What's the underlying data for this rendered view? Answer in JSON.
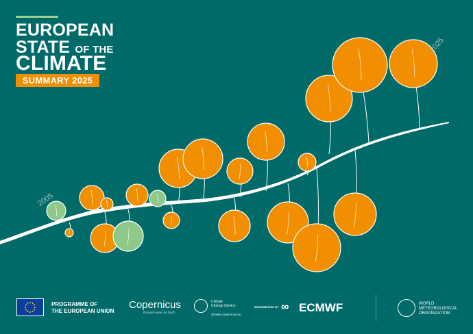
{
  "cover": {
    "title_line1": "EUROPEAN",
    "title_line2_big": "STATE",
    "title_line2_small": "OF THE",
    "title_line3": "CLIMATE",
    "summary_label": "SUMMARY 2025",
    "start_year": "2005",
    "end_year": "2025"
  },
  "colors": {
    "background": "#006a69",
    "warm": "#f18f00",
    "cool": "#8fc98a",
    "accent_bar": "#9ed08c"
  },
  "bubbles": [
    {
      "kind": "cool",
      "above": true
    },
    {
      "kind": "warm",
      "above": false
    },
    {
      "kind": "warm",
      "above": true
    },
    {
      "kind": "warm",
      "above": true
    },
    {
      "kind": "warm",
      "above": false
    },
    {
      "kind": "cool",
      "above": false
    },
    {
      "kind": "warm",
      "above": true
    },
    {
      "kind": "cool",
      "above": true
    },
    {
      "kind": "warm",
      "above": false
    },
    {
      "kind": "warm",
      "above": true
    },
    {
      "kind": "warm",
      "above": true
    },
    {
      "kind": "warm",
      "above": false
    },
    {
      "kind": "warm",
      "above": true
    },
    {
      "kind": "warm",
      "above": true
    },
    {
      "kind": "warm",
      "above": false
    },
    {
      "kind": "warm",
      "above": true
    },
    {
      "kind": "warm",
      "above": false
    },
    {
      "kind": "warm",
      "above": false
    },
    {
      "kind": "warm",
      "above": true
    },
    {
      "kind": "warm",
      "above": true
    },
    {
      "kind": "warm",
      "above": true
    }
  ],
  "footer": {
    "eu_line1": "PROGRAMME OF",
    "eu_line2": "THE EUROPEAN UNION",
    "copernicus": "Copernicus",
    "copernicus_tagline": "Europe's eyes on Earth",
    "c3s_line1": "Climate",
    "c3s_line2": "Change Service",
    "c3s_url": "climate.copernicus.eu",
    "implemented_by": "IMPLEMENTED BY",
    "ecmwf": "ECMWF",
    "wmo_line1": "WORLD",
    "wmo_line2": "METEOROLOGICAL",
    "wmo_line3": "ORGANIZATION"
  }
}
